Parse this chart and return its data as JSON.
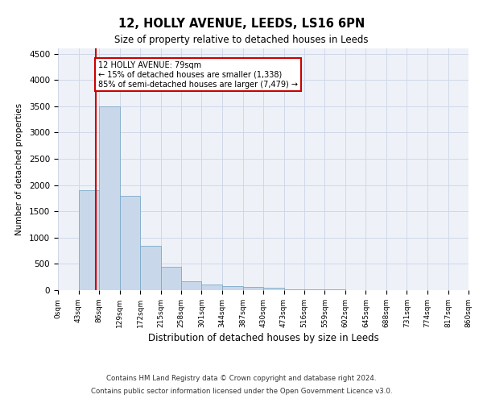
{
  "title": "12, HOLLY AVENUE, LEEDS, LS16 6PN",
  "subtitle": "Size of property relative to detached houses in Leeds",
  "xlabel": "Distribution of detached houses by size in Leeds",
  "ylabel": "Number of detached properties",
  "footnote1": "Contains HM Land Registry data © Crown copyright and database right 2024.",
  "footnote2": "Contains public sector information licensed under the Open Government Licence v3.0.",
  "annotation_title": "12 HOLLY AVENUE: 79sqm",
  "annotation_line1": "← 15% of detached houses are smaller (1,338)",
  "annotation_line2": "85% of semi-detached houses are larger (7,479) →",
  "bar_color": "#c8d8ea",
  "bar_edge_color": "#7aaac8",
  "marker_line_color": "#cc0000",
  "annotation_box_color": "#cc0000",
  "grid_color": "#d0d8e8",
  "background_color": "#eef2f8",
  "property_size": 79,
  "bin_edges": [
    0,
    43,
    86,
    129,
    172,
    215,
    258,
    301,
    344,
    387,
    430,
    473,
    516,
    559,
    602,
    645,
    688,
    731,
    774,
    817,
    860
  ],
  "bin_labels": [
    "0sqm",
    "43sqm",
    "86sqm",
    "129sqm",
    "172sqm",
    "215sqm",
    "258sqm",
    "301sqm",
    "344sqm",
    "387sqm",
    "430sqm",
    "473sqm",
    "516sqm",
    "559sqm",
    "602sqm",
    "645sqm",
    "688sqm",
    "731sqm",
    "774sqm",
    "817sqm",
    "860sqm"
  ],
  "bar_heights": [
    5,
    1900,
    3500,
    1800,
    850,
    450,
    175,
    100,
    80,
    60,
    40,
    20,
    10,
    8,
    5,
    4,
    3,
    3,
    2,
    2
  ],
  "ylim": [
    0,
    4600
  ],
  "yticks": [
    0,
    500,
    1000,
    1500,
    2000,
    2500,
    3000,
    3500,
    4000,
    4500
  ]
}
